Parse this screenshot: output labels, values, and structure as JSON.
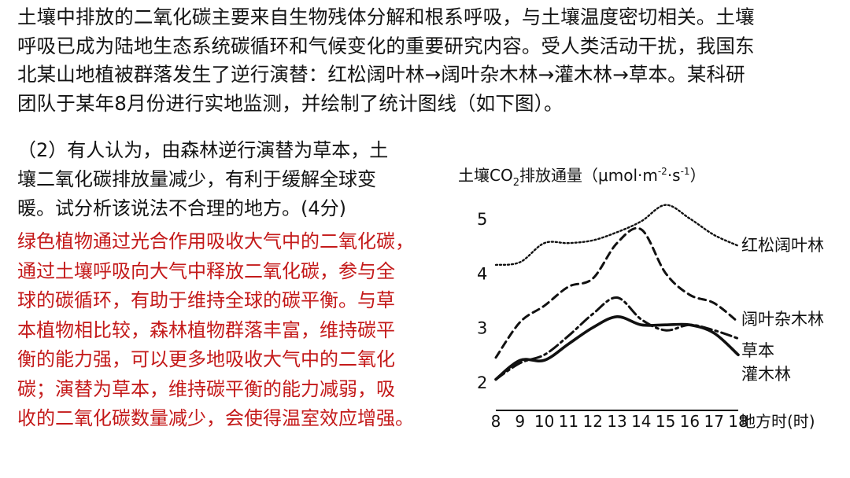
{
  "intro_lines": [
    "土壤中排放的二氧化碳主要来自生物残体分解和根系呼吸，与土壤温度密切相关。土壤",
    "呼吸已成为陆地生态系统碳循环和气候变化的重要研究内容。受人类活动干扰，我国东",
    "北某山地植被群落发生了逆行演替：红松阔叶林→阔叶杂木林→灌木林→草本。某科研",
    "团队于某年8月份进行实地监测，并绘制了统计图线（如下图）。"
  ],
  "question_lines": [
    "（2）有人认为，由森林逆行演替为草本，土",
    "壤二氧化碳排放量减少，有利于缓解全球变",
    "暖。试分析该说法不合理的地方。(4分)"
  ],
  "answer_lines": [
    "绿色植物通过光合作用吸收大气中的二氧化碳，",
    "通过土壤呼吸向大气中释放二氧化碳，参与全",
    "球的碳循环，有助于维持全球的碳平衡。与草",
    "本植物相比较，森林植物群落丰富，维持碳平",
    "衡的能力强，可以更多地吸收大气中的二氧化",
    "碳；演替为草本，维持碳平衡的能力减弱，吸",
    "收的二氧化碳数量减少，会使得温室效应增强。"
  ],
  "colors": {
    "text": "#141414",
    "answer": "#c41a1a",
    "axis": "#111111"
  },
  "chart_data": {
    "type": "line",
    "ylabel": {
      "main": "土壤CO",
      "sub": "2",
      "tail": "排放通量（μmol·m",
      "sup1": "-2",
      "mid": "·s",
      "sup2": "-1",
      "close": "）"
    },
    "xlabel": "地方时(时)",
    "x": [
      8,
      9,
      10,
      11,
      12,
      13,
      14,
      15,
      16,
      17,
      18
    ],
    "xlim": [
      8,
      18
    ],
    "ylim": [
      2,
      5
    ],
    "yticks": [
      2,
      3,
      4,
      5
    ],
    "legend_placement": "line-end labels at right",
    "series": [
      {
        "name": "红松阔叶林",
        "style": "dotted",
        "x": [
          8,
          9,
          10,
          11,
          12,
          13,
          14,
          15,
          16,
          17,
          18
        ],
        "values": [
          4.15,
          4.2,
          4.55,
          4.55,
          4.6,
          4.75,
          4.95,
          5.25,
          5.0,
          4.7,
          4.5
        ]
      },
      {
        "name": "阔叶杂木林",
        "style": "dashed",
        "x": [
          8,
          9,
          10,
          11,
          12,
          13,
          14,
          15,
          16,
          17,
          18
        ],
        "values": [
          2.45,
          3.1,
          3.4,
          3.75,
          3.9,
          4.55,
          4.8,
          4.0,
          3.6,
          3.45,
          3.1
        ]
      },
      {
        "name": "草本",
        "style": "dashdot",
        "x": [
          8,
          9,
          10,
          11,
          12,
          13,
          14,
          15,
          16,
          17,
          18
        ],
        "values": [
          2.05,
          2.35,
          2.5,
          2.85,
          3.25,
          3.55,
          3.15,
          2.95,
          3.05,
          2.95,
          2.8
        ]
      },
      {
        "name": "灌木林",
        "style": "solid",
        "x": [
          8,
          9,
          10,
          11,
          12,
          13,
          14,
          15,
          16,
          17,
          18
        ],
        "values": [
          2.05,
          2.4,
          2.4,
          2.7,
          3.0,
          3.2,
          3.05,
          3.05,
          3.05,
          2.9,
          2.5
        ]
      }
    ]
  }
}
